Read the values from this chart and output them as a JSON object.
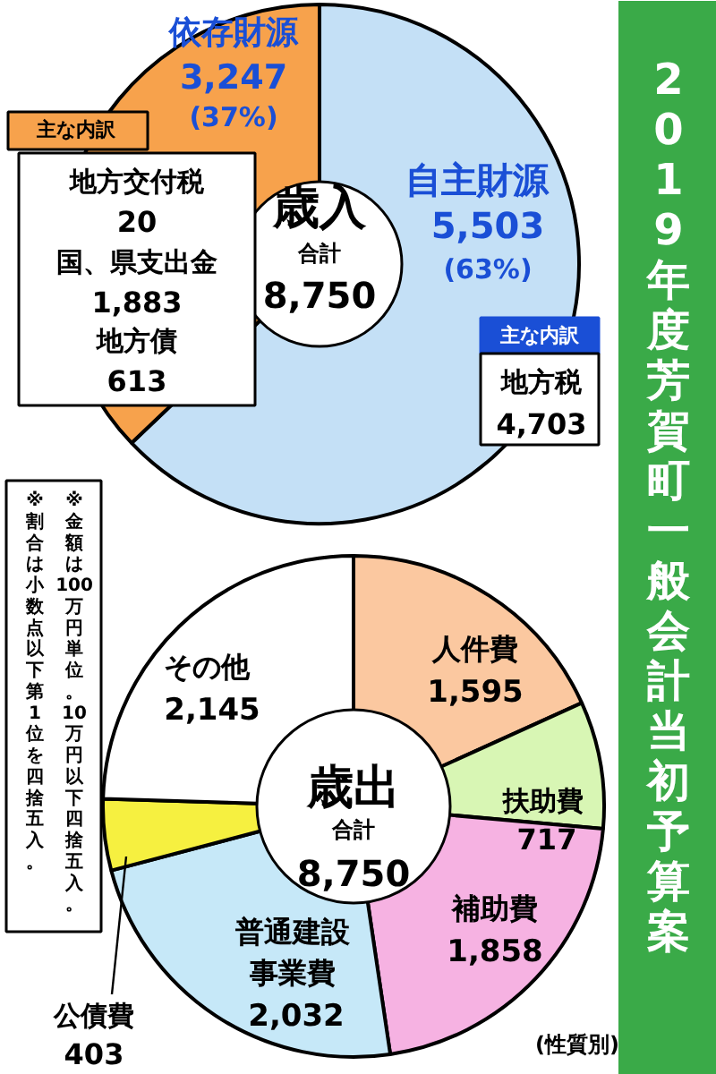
{
  "chart_data": [
    {
      "type": "donut",
      "title": "2019年度芳賀町一般会計当初予算案",
      "categories": [
        "自主財源",
        "依存財源"
      ],
      "values": [
        5503,
        3247
      ],
      "value_labels": [
        "5,503",
        "3,247"
      ],
      "colors": [
        "#c4e0f6",
        "#f7a24c"
      ],
      "annotations": [
        "(63%)",
        "(37%)",
        "歳入",
        "合計",
        "8,750",
        "主な内訳",
        "地方交付税",
        "20",
        "国、県支出金",
        "1,883",
        "地方債",
        "613",
        "主な内訳",
        "地方税",
        "4,703"
      ]
    },
    {
      "type": "donut",
      "categories": [
        "人件費",
        "扶助費",
        "補助費",
        "普通建設事業費",
        "公債費",
        "その他"
      ],
      "values": [
        1595,
        717,
        1858,
        2032,
        403,
        2145
      ],
      "value_labels": [
        "1,595",
        "717",
        "1,858",
        "2,032",
        "403",
        "2,145"
      ],
      "colors": [
        "#fbc8a0",
        "#d8f6b4",
        "#f6b2e2",
        "#c6e8f8",
        "#f6f040",
        "#ffffff"
      ],
      "annotations": [
        "歳出",
        "合計",
        "8,750",
        "(性質別)",
        "※金額は100万円単位。10万円以下四捨五入。",
        "※割合は小数点以下第1位を四捨五入。"
      ]
    }
  ]
}
